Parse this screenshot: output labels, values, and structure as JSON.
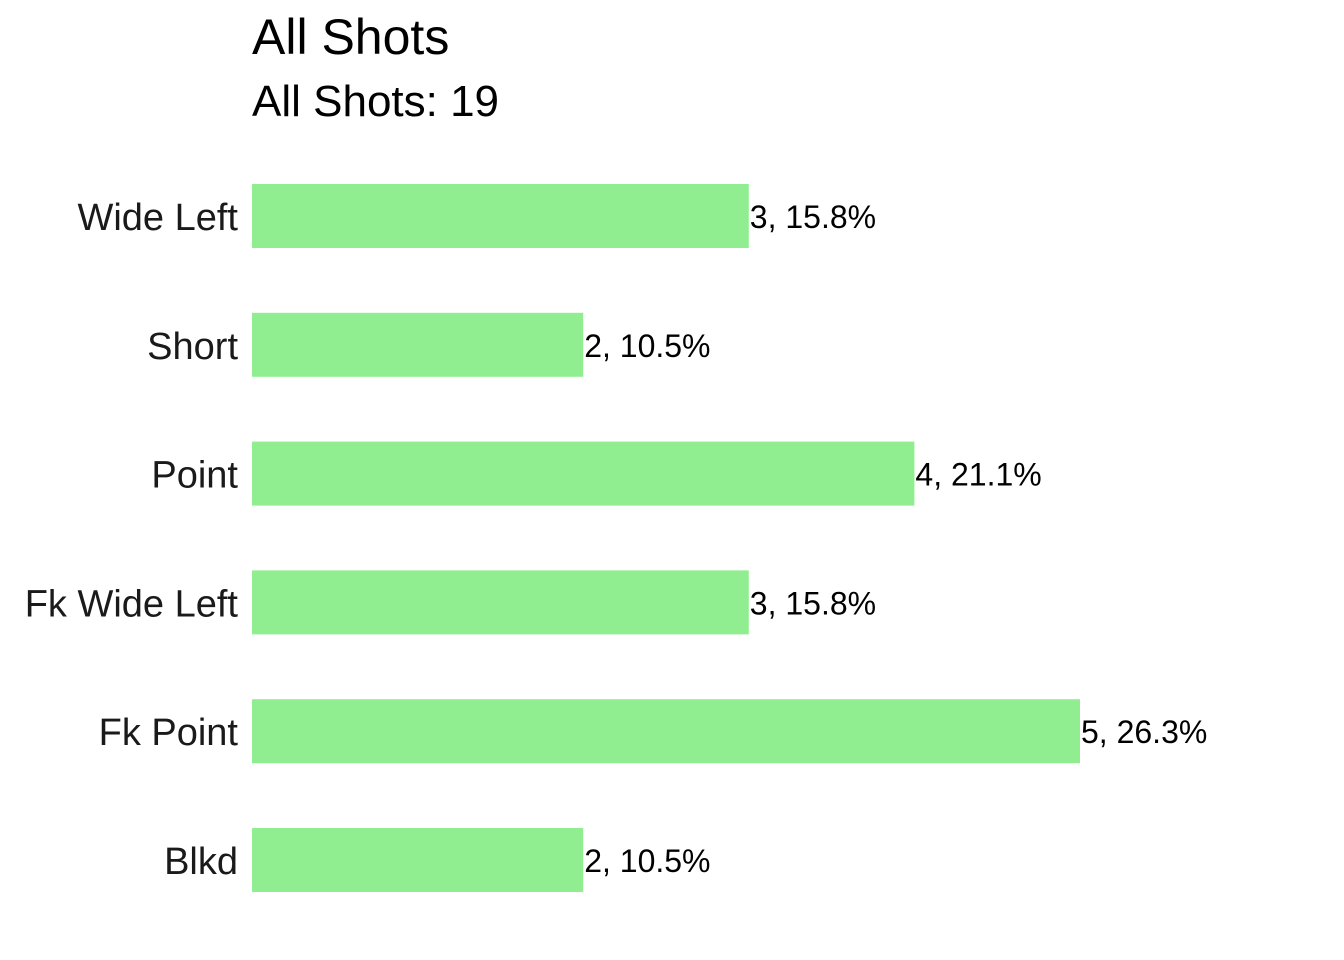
{
  "chart_data": {
    "type": "bar",
    "orientation": "horizontal",
    "title": "All Shots",
    "subtitle": "All Shots: 19",
    "categories": [
      "Wide Left",
      "Short",
      "Point",
      "Fk Wide Left",
      "Fk Point",
      "Blkd"
    ],
    "values": [
      3,
      2,
      4,
      3,
      5,
      2
    ],
    "data_labels": [
      "3, 15.8%",
      "2, 10.5%",
      "4, 21.1%",
      "3, 15.8%",
      "5, 26.3%",
      "2, 10.5%"
    ],
    "xlim": [
      0,
      5
    ],
    "grid": false,
    "legend": "none",
    "bar_color": "#90ee90"
  }
}
